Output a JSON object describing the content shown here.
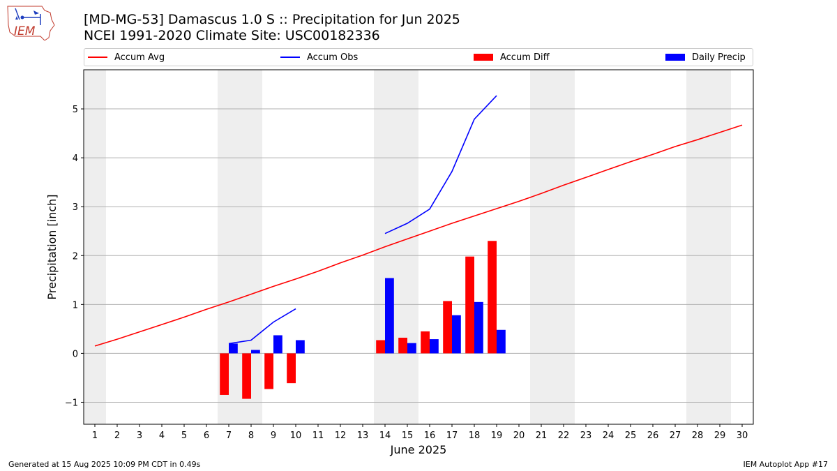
{
  "header": {
    "logo_text": "IEM",
    "title": "[MD-MG-53] Damascus 1.0 S :: Precipitation for Jun 2025",
    "subtitle": "NCEI 1991-2020 Climate Site: USC00182336"
  },
  "legend": {
    "items": [
      {
        "label": "Accum Avg",
        "kind": "line",
        "color": "#ff0000"
      },
      {
        "label": "Accum Obs",
        "kind": "line",
        "color": "#0000ff"
      },
      {
        "label": "Accum Diff",
        "kind": "bar",
        "color": "#ff0000"
      },
      {
        "label": "Daily Precip",
        "kind": "bar",
        "color": "#0000ff"
      }
    ]
  },
  "footer": {
    "left": "Generated at 15 Aug 2025 10:09 PM CDT in 0.49s",
    "right": "IEM Autoplot App #17"
  },
  "chart_data": {
    "type": "bar",
    "xlabel": "June 2025",
    "ylabel": "Precipitation [inch]",
    "x": [
      1,
      2,
      3,
      4,
      5,
      6,
      7,
      8,
      9,
      10,
      11,
      12,
      13,
      14,
      15,
      16,
      17,
      18,
      19,
      20,
      21,
      22,
      23,
      24,
      25,
      26,
      27,
      28,
      29,
      30
    ],
    "xlim": [
      0.5,
      30.5
    ],
    "ylim": [
      -1.45,
      5.8
    ],
    "yticks": [
      -1,
      0,
      1,
      2,
      3,
      4,
      5
    ],
    "ytick_labels": [
      "−1",
      "0",
      "1",
      "2",
      "3",
      "4",
      "5"
    ],
    "grid": "horizontal",
    "legend_position": "top",
    "weekend_shading": [
      [
        0.5,
        1.5
      ],
      [
        6.5,
        8.5
      ],
      [
        13.5,
        15.5
      ],
      [
        20.5,
        22.5
      ],
      [
        27.5,
        29.5
      ]
    ],
    "series": [
      {
        "name": "Accum Avg",
        "kind": "line",
        "color": "#ff0000",
        "x": [
          1,
          2,
          3,
          4,
          5,
          6,
          7,
          8,
          9,
          10,
          11,
          12,
          13,
          14,
          15,
          16,
          17,
          18,
          19,
          20,
          21,
          22,
          23,
          24,
          25,
          26,
          27,
          28,
          29,
          30
        ],
        "values": [
          0.15,
          0.29,
          0.44,
          0.59,
          0.74,
          0.9,
          1.05,
          1.21,
          1.37,
          1.52,
          1.68,
          1.85,
          2.01,
          2.18,
          2.34,
          2.5,
          2.66,
          2.81,
          2.96,
          3.11,
          3.27,
          3.44,
          3.6,
          3.76,
          3.92,
          4.07,
          4.23,
          4.37,
          4.52,
          4.67
        ]
      },
      {
        "name": "Accum Obs",
        "kind": "line",
        "color": "#0000ff",
        "x": [
          7,
          8,
          9,
          10,
          11,
          12,
          13,
          14,
          15,
          16,
          17,
          18,
          19
        ],
        "values": [
          0.2,
          0.27,
          0.64,
          0.91,
          null,
          null,
          null,
          2.45,
          2.66,
          2.95,
          3.72,
          4.79,
          5.27
        ]
      },
      {
        "name": "Accum Diff",
        "kind": "bar",
        "color": "#ff0000",
        "x": [
          7,
          8,
          9,
          10,
          14,
          15,
          16,
          17,
          18,
          19
        ],
        "values": [
          -0.85,
          -0.93,
          -0.73,
          -0.61,
          0.27,
          0.32,
          0.45,
          1.07,
          1.98,
          2.3
        ]
      },
      {
        "name": "Daily Precip",
        "kind": "bar",
        "color": "#0000ff",
        "x": [
          7,
          8,
          9,
          10,
          14,
          15,
          16,
          17,
          18,
          19
        ],
        "values": [
          0.2,
          0.07,
          0.37,
          0.27,
          1.54,
          0.21,
          0.29,
          0.78,
          1.05,
          0.48
        ]
      }
    ]
  }
}
